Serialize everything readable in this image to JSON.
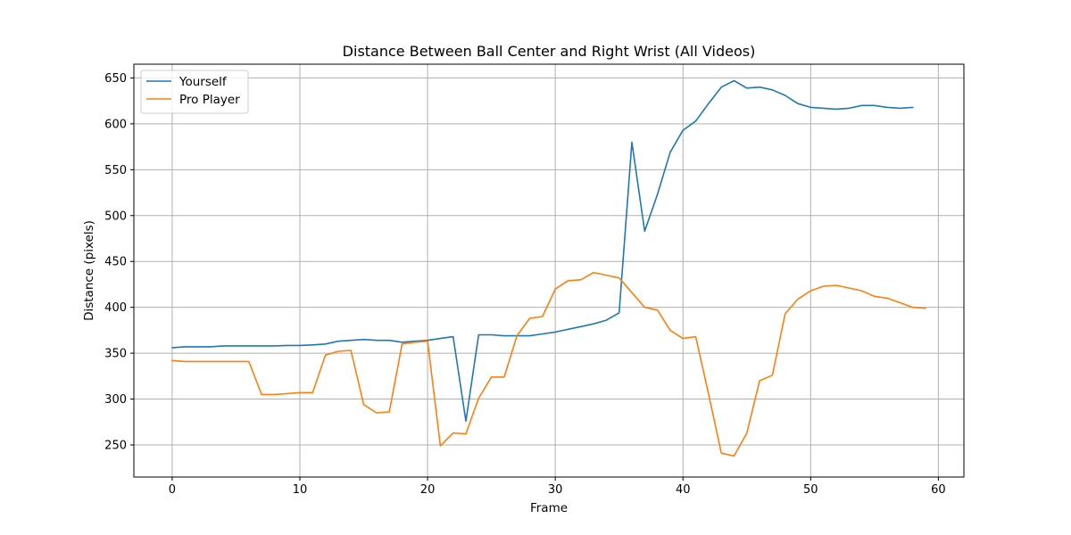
{
  "chart_data": {
    "type": "line",
    "title": "Distance Between Ball Center and Right Wrist (All Videos)",
    "xlabel": "Frame",
    "ylabel": "Distance (pixels)",
    "xlim": [
      -3,
      62
    ],
    "ylim": [
      215,
      665
    ],
    "xticks": [
      0,
      10,
      20,
      30,
      40,
      50,
      60
    ],
    "yticks": [
      250,
      300,
      350,
      400,
      450,
      500,
      550,
      600,
      650
    ],
    "grid": true,
    "legend_position": "top-left",
    "series": [
      {
        "name": "Yourself",
        "color": "#1f77b4",
        "x": [
          0,
          1,
          2,
          3,
          4,
          5,
          6,
          7,
          8,
          9,
          10,
          11,
          12,
          13,
          14,
          15,
          16,
          17,
          18,
          19,
          20,
          21,
          22,
          23,
          24,
          25,
          26,
          27,
          28,
          29,
          30,
          31,
          32,
          33,
          34,
          35,
          36,
          37,
          38,
          39,
          40,
          41,
          42,
          43,
          44,
          45,
          46,
          47,
          48,
          49,
          50,
          51,
          52,
          53,
          54,
          55,
          56,
          57,
          58
        ],
        "y": [
          356,
          357,
          357,
          357,
          358,
          358,
          358,
          358,
          358,
          358.5,
          358.5,
          359,
          360,
          363,
          364,
          365,
          364,
          364,
          362,
          363,
          364,
          366,
          368,
          276,
          370,
          370,
          369,
          369,
          369,
          371,
          373,
          376,
          379,
          382,
          386,
          394,
          580,
          483,
          523,
          569,
          593,
          603,
          622,
          640,
          647,
          639,
          640,
          637,
          631,
          622,
          618,
          617,
          616,
          617,
          620,
          620,
          618,
          617,
          618
        ]
      },
      {
        "name": "Pro Player",
        "color": "#ff7f0e",
        "x": [
          0,
          1,
          2,
          3,
          4,
          5,
          6,
          7,
          8,
          9,
          10,
          11,
          12,
          13,
          14,
          15,
          16,
          17,
          18,
          19,
          20,
          21,
          22,
          23,
          24,
          25,
          26,
          27,
          28,
          29,
          30,
          31,
          32,
          33,
          34,
          35,
          36,
          37,
          38,
          39,
          40,
          41,
          42,
          43,
          44,
          45,
          46,
          47,
          48,
          49,
          50,
          51,
          52,
          53,
          54,
          55,
          56,
          57,
          58,
          59
        ],
        "y": [
          342,
          341,
          341,
          341,
          341,
          341,
          341,
          305,
          305,
          306,
          307,
          307,
          348,
          352,
          353,
          294,
          285,
          286,
          360,
          362,
          363,
          249,
          263,
          262,
          301,
          324,
          324,
          369,
          388,
          390,
          420,
          429,
          430,
          438,
          435,
          432,
          416,
          400,
          397,
          375,
          366,
          368,
          306,
          241,
          238,
          263,
          320,
          326,
          393,
          409,
          418,
          423,
          424,
          421,
          418,
          412,
          410,
          405,
          400,
          399
        ]
      }
    ]
  }
}
